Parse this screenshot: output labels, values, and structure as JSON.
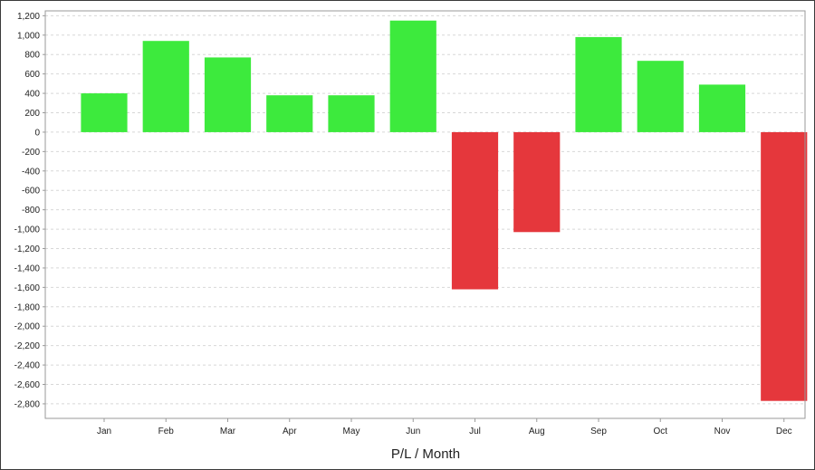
{
  "chart_data": {
    "type": "bar",
    "title": "",
    "xlabel": "P/L / Month",
    "ylabel": "",
    "categories": [
      "Jan",
      "Feb",
      "Mar",
      "Apr",
      "May",
      "Jun",
      "Jul",
      "Aug",
      "Sep",
      "Oct",
      "Nov",
      "Dec"
    ],
    "values": [
      400,
      940,
      770,
      380,
      380,
      1150,
      -1620,
      -1030,
      980,
      735,
      490,
      -2770
    ],
    "ylim": [
      -2950,
      1250
    ],
    "yticks": [
      1200,
      1000,
      800,
      600,
      400,
      200,
      0,
      -200,
      -400,
      -600,
      -800,
      -1000,
      -1200,
      -1400,
      -1600,
      -1800,
      -2000,
      -2200,
      -2400,
      -2600,
      -2800
    ],
    "ytick_labels": [
      "1,200",
      "1,000",
      "800",
      "600",
      "400",
      "200",
      "0",
      "-200",
      "-400",
      "-600",
      "-800",
      "-1,000",
      "-1,200",
      "-1,400",
      "-1,600",
      "-1,800",
      "-2,000",
      "-2,200",
      "-2,400",
      "-2,600",
      "-2,800"
    ],
    "grid": true,
    "legend": "none",
    "colors": {
      "positive": "#3dea3d",
      "negative": "#e5373c",
      "grid": "#d7d7d7",
      "axis": "#9a9a9a"
    }
  }
}
